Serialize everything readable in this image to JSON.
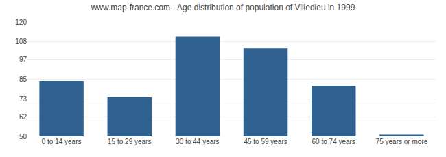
{
  "chart_data": {
    "type": "bar",
    "title": "www.map-france.com - Age distribution of population of Villedieu in 1999",
    "categories": [
      "0 to 14 years",
      "15 to 29 years",
      "30 to 44 years",
      "45 to 59 years",
      "60 to 74 years",
      "75 years or more"
    ],
    "values": [
      84,
      74,
      111,
      104,
      81,
      51
    ],
    "color": "#2E6090",
    "ylim": [
      50,
      120
    ],
    "yticks": [
      50,
      62,
      73,
      85,
      97,
      108,
      120
    ],
    "grid": true
  }
}
